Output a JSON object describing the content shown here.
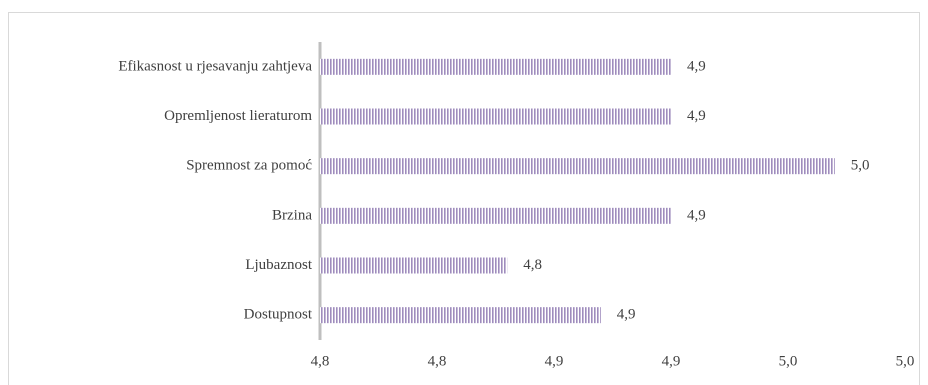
{
  "chart_data": {
    "type": "bar",
    "orientation": "horizontal",
    "categories": [
      "Efikasnost u rjesavanju zahtjeva",
      "Opremljenost lieraturom",
      "Spremnost za pomoć",
      "Brzina",
      "Ljubaznost",
      "Dostupnost"
    ],
    "values": [
      4.9,
      4.9,
      4.97,
      4.9,
      4.83,
      4.87
    ],
    "value_labels": [
      "4,9",
      "4,9",
      "5,0",
      "4,9",
      "4,8",
      "4,9"
    ],
    "color": "#9f8cbd",
    "xlim": [
      4.75,
      5.0
    ],
    "xticks": [
      {
        "value": 4.75,
        "label": "4,8"
      },
      {
        "value": 4.8,
        "label": "4,8"
      },
      {
        "value": 4.85,
        "label": "4,9"
      },
      {
        "value": 4.9,
        "label": "4,9"
      },
      {
        "value": 4.95,
        "label": "5,0"
      },
      {
        "value": 5.0,
        "label": "5,0"
      }
    ]
  }
}
